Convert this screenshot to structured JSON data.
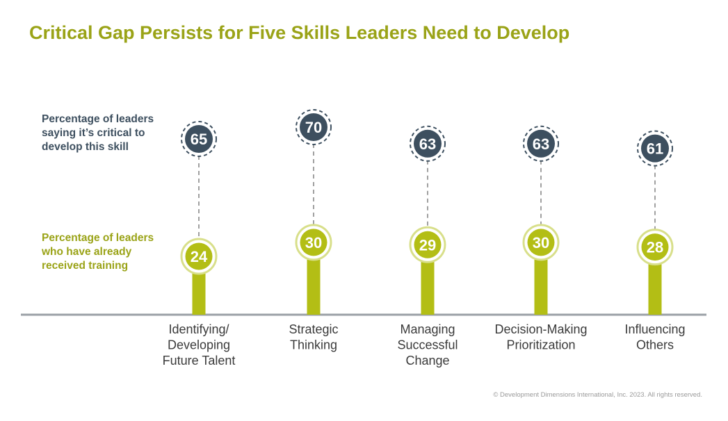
{
  "title": "Critical Gap Persists for Five Skills Leaders Need to Develop",
  "footer": "© Development Dimensions International, Inc. 2023. All rights reserved.",
  "colors": {
    "title": "#9aa317",
    "critical": "#3d4f5f",
    "trained": "#b3be15",
    "axis": "#9aa0a6",
    "connector": "#a0a0a0"
  },
  "chart_data": {
    "type": "bar",
    "title": "Critical Gap Persists for Five Skills Leaders Need to Develop",
    "categories": [
      [
        "Identifying/",
        "Developing",
        "Future Talent"
      ],
      [
        "Strategic",
        "Thinking"
      ],
      [
        "Managing",
        "Successful",
        "Change"
      ],
      [
        "Decision-Making",
        "Prioritization"
      ],
      [
        "Influencing",
        "Others"
      ]
    ],
    "series": [
      {
        "name": "Percentage of leaders saying it’s critical to develop this skill",
        "name_lines": [
          "Percentage of leaders",
          "saying it’s critical to",
          "develop this skill"
        ],
        "values": [
          65,
          70,
          63,
          63,
          61
        ]
      },
      {
        "name": "Percentage of leaders who have already received training",
        "name_lines": [
          "Percentage of leaders",
          "who have already",
          "received training"
        ],
        "values": [
          24,
          30,
          29,
          30,
          28
        ]
      }
    ],
    "ylim": [
      0,
      100
    ],
    "grid": false,
    "legend": "left"
  }
}
